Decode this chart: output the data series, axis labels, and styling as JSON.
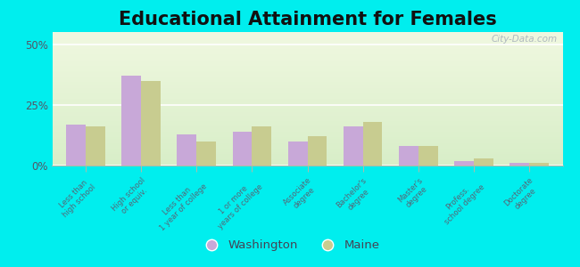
{
  "title": "Educational Attainment for Females",
  "categories": [
    "Less than\nhigh school",
    "High school\nor equiv.",
    "Less than\n1 year of college",
    "1 or more\nyears of college",
    "Associate\ndegree",
    "Bachelor's\ndegree",
    "Master's\ndegree",
    "Profess.\nschool degree",
    "Doctorate\ndegree"
  ],
  "washington": [
    17,
    37,
    13,
    14,
    10,
    16,
    8,
    2,
    1
  ],
  "maine": [
    16,
    35,
    10,
    16,
    12,
    18,
    8,
    3,
    1
  ],
  "washington_color": "#c8a8d8",
  "maine_color": "#c8cc90",
  "background_color": "#00eeee",
  "title_fontsize": 15,
  "yticks": [
    0,
    25,
    50
  ],
  "ylim": [
    0,
    55
  ],
  "bar_width": 0.35
}
